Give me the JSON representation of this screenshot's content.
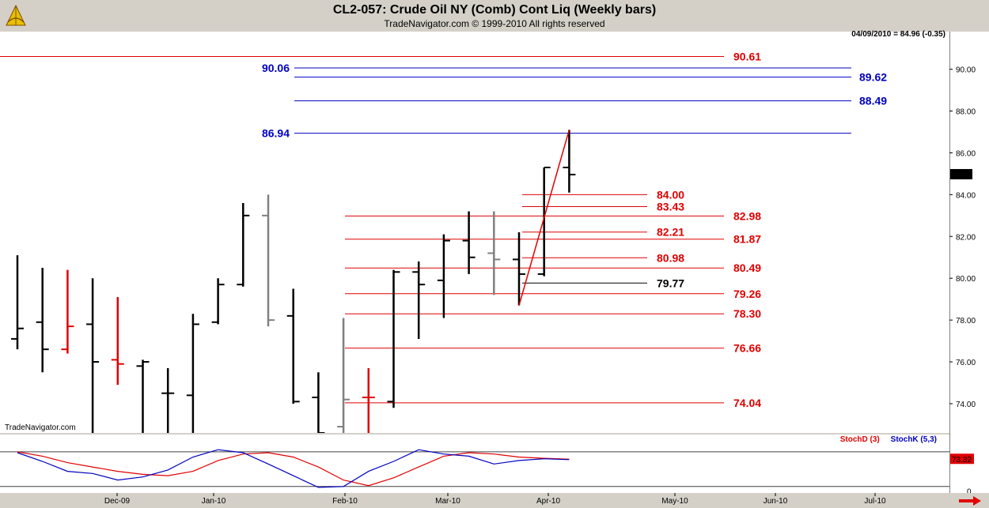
{
  "header": {
    "title": "CL2-057:  Crude Oil NY (Comb) Cont Liq  (Weekly bars)",
    "subtitle": "TradeNavigator.com © 1999-2010 All rights reserved",
    "last_info": "04/09/2010 = 84.96 (-0.35)",
    "watermark": "TradeNavigator.com"
  },
  "colors": {
    "up": "#000000",
    "down_red": "#e00000",
    "gray": "#808080",
    "blue": "#0000c0",
    "red": "#e00000",
    "bg": "#ffffff",
    "chrome": "#d4d0c8"
  },
  "chart_data": [
    {
      "type": "ohlc",
      "title": "CL2-057:  Crude Oil NY (Comb) Cont Liq  (Weekly bars)",
      "ylim": [
        72.6,
        91.8
      ],
      "y_ticks": [
        "90.00",
        "88.00",
        "86.00",
        "84.00",
        "82.00",
        "80.00",
        "78.00",
        "76.00",
        "74.00"
      ],
      "y_tick_values": [
        90,
        88,
        86,
        84,
        82,
        80,
        78,
        76,
        74
      ],
      "x_ticks": [
        "Dec-09",
        "Jan-10",
        "Feb-10",
        "Mar-10",
        "Apr-10",
        "May-10",
        "Jun-10",
        "Jul-10"
      ],
      "last_price_label": "84.96",
      "bars": [
        {
          "o": 77.1,
          "h": 81.1,
          "l": 76.6,
          "c": 77.6,
          "color": "black"
        },
        {
          "o": 77.9,
          "h": 80.5,
          "l": 75.5,
          "c": 76.6,
          "color": "black"
        },
        {
          "o": 76.6,
          "h": 80.4,
          "l": 76.4,
          "c": 77.7,
          "color": "red"
        },
        {
          "o": 77.8,
          "h": 80.0,
          "l": 72.6,
          "c": 76.0,
          "color": "black"
        },
        {
          "o": 76.1,
          "h": 79.1,
          "l": 74.9,
          "c": 75.9,
          "color": "red"
        },
        {
          "o": 75.8,
          "h": 76.1,
          "l": 72.6,
          "c": 76.0,
          "color": "black"
        },
        {
          "o": 74.5,
          "h": 75.7,
          "l": 72.6,
          "c": 74.5,
          "color": "black"
        },
        {
          "o": 74.4,
          "h": 78.3,
          "l": 72.6,
          "c": 77.8,
          "color": "black"
        },
        {
          "o": 77.9,
          "h": 80.0,
          "l": 77.8,
          "c": 79.7,
          "color": "black"
        },
        {
          "o": 79.7,
          "h": 83.6,
          "l": 79.6,
          "c": 83.0,
          "color": "black"
        },
        {
          "o": 83.0,
          "h": 84.0,
          "l": 77.7,
          "c": 78.0,
          "color": "gray"
        },
        {
          "o": 78.2,
          "h": 79.5,
          "l": 74.0,
          "c": 74.1,
          "color": "black"
        },
        {
          "o": 74.3,
          "h": 75.5,
          "l": 72.6,
          "c": 72.6,
          "color": "black"
        },
        {
          "o": 72.9,
          "h": 78.1,
          "l": 72.6,
          "c": 74.2,
          "color": "gray"
        },
        {
          "o": 74.3,
          "h": 75.7,
          "l": 72.6,
          "c": 74.3,
          "color": "red"
        },
        {
          "o": 74.1,
          "h": 80.4,
          "l": 73.8,
          "c": 80.3,
          "color": "black"
        },
        {
          "o": 80.3,
          "h": 80.8,
          "l": 77.1,
          "c": 79.7,
          "color": "black"
        },
        {
          "o": 79.9,
          "h": 82.1,
          "l": 78.1,
          "c": 81.8,
          "color": "black"
        },
        {
          "o": 81.8,
          "h": 83.2,
          "l": 80.2,
          "c": 81.0,
          "color": "black"
        },
        {
          "o": 81.2,
          "h": 83.2,
          "l": 79.2,
          "c": 80.9,
          "color": "gray"
        },
        {
          "o": 80.9,
          "h": 82.2,
          "l": 78.7,
          "c": 80.2,
          "color": "black"
        },
        {
          "o": 80.2,
          "h": 85.3,
          "l": 80.1,
          "c": 85.3,
          "color": "black"
        },
        {
          "o": 85.3,
          "h": 87.1,
          "l": 84.1,
          "c": 84.96,
          "color": "black"
        }
      ],
      "trend_line": {
        "from": {
          "bar": 20,
          "price": 78.7
        },
        "to": {
          "bar": 22,
          "price": 87.1
        },
        "color": "red"
      },
      "retracement_levels_red": [
        {
          "label": "90.61",
          "value": 90.61
        },
        {
          "label": "84.00",
          "value": 84.0
        },
        {
          "label": "83.43",
          "value": 83.43
        },
        {
          "label": "82.98",
          "value": 82.98
        },
        {
          "label": "82.21",
          "value": 82.21
        },
        {
          "label": "81.87",
          "value": 81.87
        },
        {
          "label": "80.98",
          "value": 80.98
        },
        {
          "label": "80.49",
          "value": 80.49
        },
        {
          "label": "79.26",
          "value": 79.26
        },
        {
          "label": "78.30",
          "value": 78.3
        },
        {
          "label": "76.66",
          "value": 76.66
        },
        {
          "label": "74.04",
          "value": 74.04
        }
      ],
      "retracement_levels_blue": [
        {
          "label": "90.06",
          "value": 90.06
        },
        {
          "label": "89.62",
          "value": 89.62
        },
        {
          "label": "88.49",
          "value": 88.49
        },
        {
          "label": "86.94",
          "value": 86.94
        }
      ],
      "black_level": {
        "label": "79.77",
        "value": 79.77
      }
    },
    {
      "type": "line",
      "title": "Stochastic",
      "legend": [
        "StochD (3)",
        "StochK (5,3)"
      ],
      "ylim": [
        -5,
        130
      ],
      "y_ticks": [
        "0"
      ],
      "last_value_label": "73.32",
      "reference_lines": [
        90,
        10
      ],
      "series": [
        {
          "name": "StochD (3)",
          "color": "red",
          "values": [
            90,
            80,
            65,
            55,
            45,
            38,
            35,
            45,
            70,
            85,
            88,
            78,
            55,
            25,
            12,
            30,
            55,
            80,
            88,
            85,
            78,
            75,
            73
          ]
        },
        {
          "name": "StochK (5,3)",
          "color": "blue",
          "values": [
            88,
            68,
            45,
            40,
            25,
            32,
            48,
            78,
            95,
            88,
            62,
            35,
            8,
            10,
            45,
            68,
            95,
            85,
            80,
            62,
            70,
            74,
            72
          ]
        }
      ]
    }
  ]
}
